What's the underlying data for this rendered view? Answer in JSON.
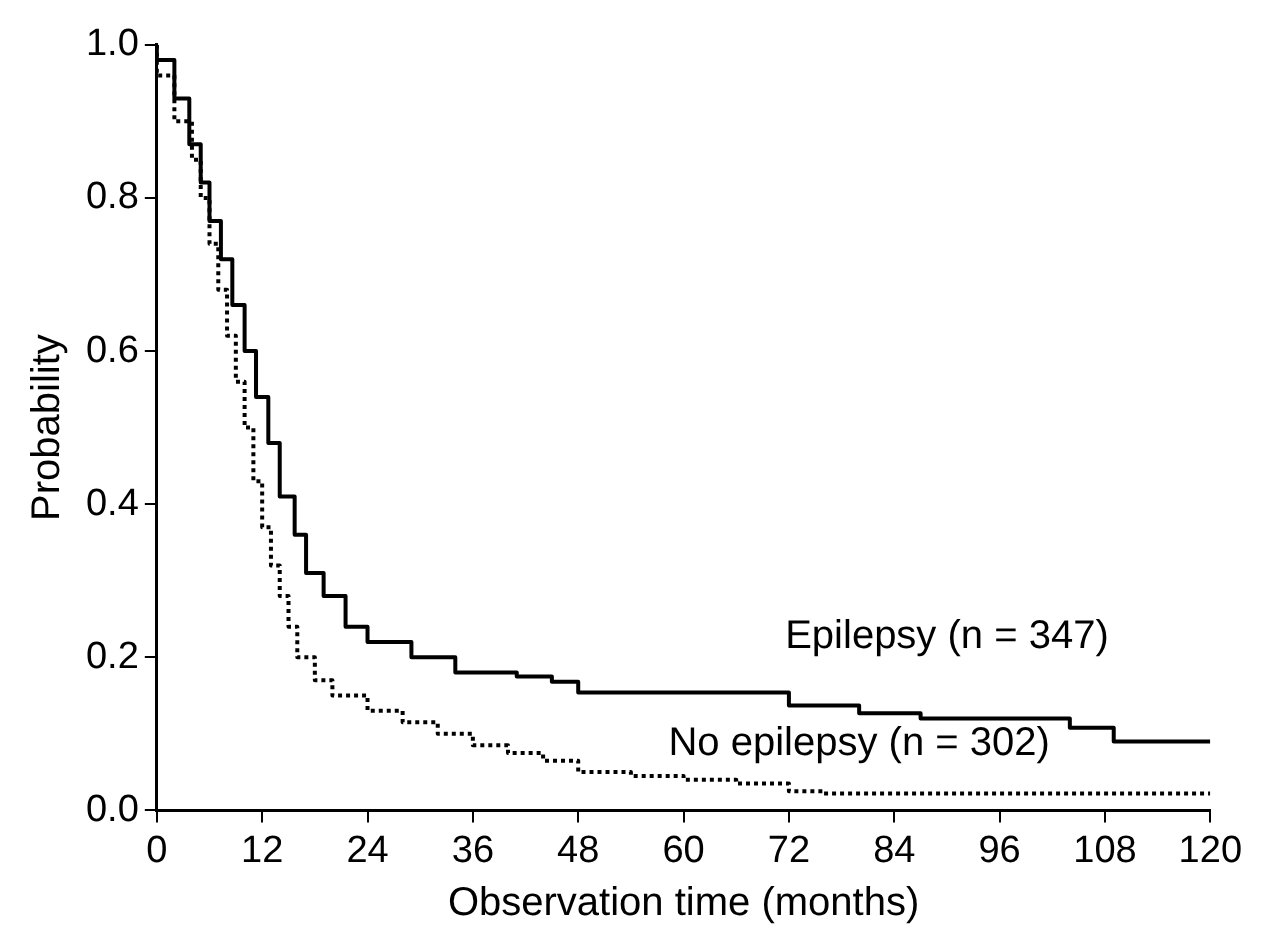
{
  "chart_data": {
    "type": "step",
    "xlabel": "Observation time (months)",
    "ylabel": "Probability",
    "xlim": [
      0,
      120
    ],
    "xticks": [
      0,
      12,
      24,
      36,
      48,
      60,
      72,
      84,
      96,
      108,
      120
    ],
    "ylim": [
      0,
      1
    ],
    "yticks": [
      {
        "value": 0,
        "label": "0.0"
      },
      {
        "value": 0.2,
        "label": "0.2"
      },
      {
        "value": 0.4,
        "label": "0.4"
      },
      {
        "value": 0.6,
        "label": "0.6"
      },
      {
        "value": 0.8,
        "label": "0.8"
      },
      {
        "value": 1,
        "label": "1.0"
      }
    ],
    "grid": false,
    "legend": false,
    "series": [
      {
        "name": "Epilepsy (n = 347)",
        "color": "#000000",
        "line_style": "solid",
        "x": [
          0,
          2,
          3.7,
          5,
          6,
          7.3,
          8.6,
          10,
          11.3,
          12.7,
          14,
          15.7,
          17,
          19,
          21.5,
          24,
          29,
          34,
          41,
          45,
          48,
          69,
          72,
          80,
          87,
          104,
          109,
          113,
          120
        ],
        "values": [
          1,
          0.98,
          0.93,
          0.87,
          0.82,
          0.77,
          0.72,
          0.66,
          0.6,
          0.54,
          0.48,
          0.41,
          0.36,
          0.31,
          0.28,
          0.24,
          0.22,
          0.2,
          0.18,
          0.175,
          0.168,
          0.154,
          0.154,
          0.137,
          0.127,
          0.12,
          0.108,
          0.09,
          0.09
        ]
      },
      {
        "name": "No epilepsy (n = 302)",
        "color": "#000000",
        "line_style": "dotted",
        "x": [
          0,
          2,
          4,
          5,
          6,
          7,
          8,
          9,
          10,
          11,
          12,
          13,
          14,
          15,
          16,
          18,
          20,
          24,
          28,
          32,
          36,
          40,
          44,
          48,
          54,
          60,
          66,
          72,
          76,
          120
        ],
        "values": [
          1,
          0.96,
          0.9,
          0.85,
          0.8,
          0.74,
          0.68,
          0.62,
          0.56,
          0.5,
          0.43,
          0.37,
          0.32,
          0.28,
          0.24,
          0.2,
          0.17,
          0.15,
          0.13,
          0.115,
          0.1,
          0.085,
          0.075,
          0.065,
          0.05,
          0.045,
          0.04,
          0.035,
          0.025,
          0.022
        ]
      }
    ]
  }
}
